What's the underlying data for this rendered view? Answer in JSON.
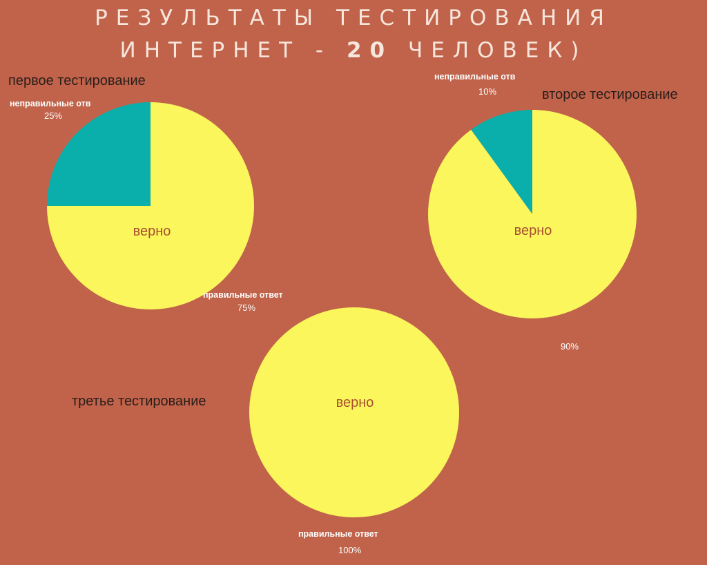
{
  "title": {
    "line1": "РЕЗУЛЬТАТЫ ТЕСТИРОВАНИЯ",
    "line2_prefix": "ИНТЕРНЕТ - ",
    "line2_number": "20",
    "line2_suffix": " ЧЕЛОВЕК)"
  },
  "colors": {
    "background": "#c0634a",
    "correct": "#fbf65c",
    "incorrect": "#0aaeaa"
  },
  "chart_data": [
    {
      "type": "pie",
      "title": "первое тестирование",
      "inner_label": "верно",
      "slices": [
        {
          "name": "неправильные отв",
          "value": 25,
          "value_label": "25%",
          "color": "#0aaeaa"
        },
        {
          "name": "правильные ответ",
          "value": 75,
          "value_label": "75%",
          "color": "#fbf65c"
        }
      ]
    },
    {
      "type": "pie",
      "title": "второе тестирование",
      "inner_label": "верно",
      "slices": [
        {
          "name": "неправильные отв",
          "value": 10,
          "value_label": "10%",
          "color": "#0aaeaa"
        },
        {
          "name": "",
          "value": 90,
          "value_label": "90%",
          "color": "#fbf65c"
        }
      ]
    },
    {
      "type": "pie",
      "title": "третье тестирование",
      "inner_label": "верно",
      "slices": [
        {
          "name": "правильные ответ",
          "value": 100,
          "value_label": "100%",
          "color": "#fbf65c"
        }
      ]
    }
  ]
}
